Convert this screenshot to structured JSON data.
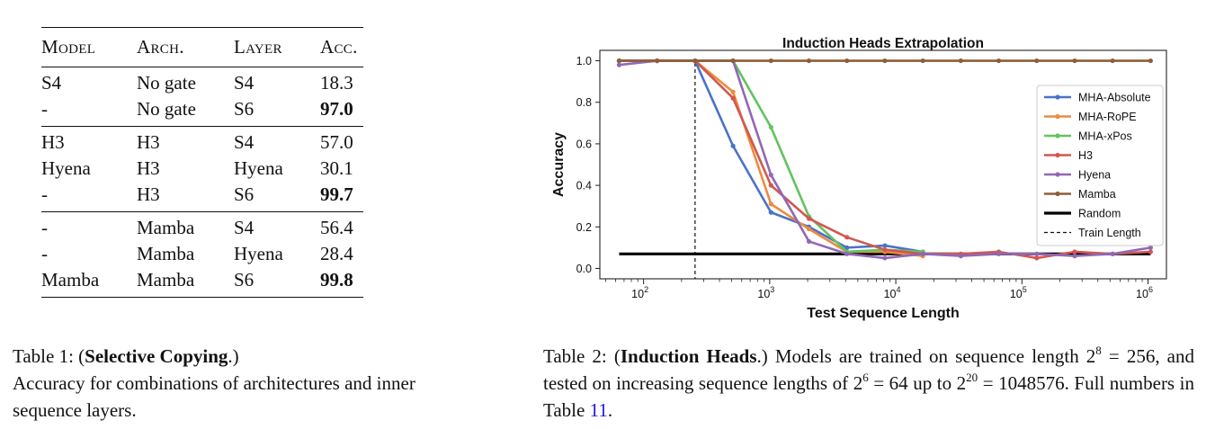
{
  "table1": {
    "headers": [
      "Model",
      "Arch.",
      "Layer",
      "Acc."
    ],
    "groups": [
      [
        {
          "model": "S4",
          "arch": "No gate",
          "layer": "S4",
          "acc": "18.3",
          "bold": false
        },
        {
          "model": "-",
          "arch": "No gate",
          "layer": "S6",
          "acc": "97.0",
          "bold": true
        }
      ],
      [
        {
          "model": "H3",
          "arch": "H3",
          "layer": "S4",
          "acc": "57.0",
          "bold": false
        },
        {
          "model": "Hyena",
          "arch": "H3",
          "layer": "Hyena",
          "acc": "30.1",
          "bold": false
        },
        {
          "model": "-",
          "arch": "H3",
          "layer": "S6",
          "acc": "99.7",
          "bold": true
        }
      ],
      [
        {
          "model": "-",
          "arch": "Mamba",
          "layer": "S4",
          "acc": "56.4",
          "bold": false
        },
        {
          "model": "-",
          "arch": "Mamba",
          "layer": "Hyena",
          "acc": "28.4",
          "bold": false
        },
        {
          "model": "Mamba",
          "arch": "Mamba",
          "layer": "S6",
          "acc": "99.8",
          "bold": true
        }
      ]
    ]
  },
  "caption1": {
    "prefix": "Table 1: (",
    "bold": "Selective Copying",
    "suffix": ".)",
    "body": "Accuracy for combinations of architectures and inner sequence layers."
  },
  "caption2": {
    "prefix": "Table 2: (",
    "bold": "Induction Heads",
    "part1": ".) Models are trained on sequence length 2",
    "exp1": "8",
    "part2": " = 256, and tested on increasing sequence lengths of 2",
    "exp2": "6",
    "part3": " = 64 up to 2",
    "exp3": "20",
    "part4": " = 1048576. Full numbers in Table ",
    "link": "11",
    "part5": "."
  },
  "chart_data": {
    "type": "line",
    "title": "Induction Heads Extrapolation",
    "xlabel": "Test Sequence Length",
    "ylabel": "Accuracy",
    "xscale": "log",
    "xlim": [
      45,
      1400000
    ],
    "ylim": [
      -0.05,
      1.05
    ],
    "x_ticks": [
      {
        "value": 100,
        "base": "10",
        "exp": "2"
      },
      {
        "value": 1000,
        "base": "10",
        "exp": "3"
      },
      {
        "value": 10000,
        "base": "10",
        "exp": "4"
      },
      {
        "value": 100000,
        "base": "10",
        "exp": "5"
      },
      {
        "value": 1000000,
        "base": "10",
        "exp": "6"
      }
    ],
    "y_ticks": [
      "0.0",
      "0.2",
      "0.4",
      "0.6",
      "0.8",
      "1.0"
    ],
    "y_tick_values": [
      0,
      0.2,
      0.4,
      0.6,
      0.8,
      1.0
    ],
    "x": [
      64,
      128,
      256,
      512,
      1024,
      2048,
      4096,
      8192,
      16384,
      32768,
      65536,
      131072,
      262144,
      524288,
      1048576
    ],
    "series": [
      {
        "name": "MHA-Absolute",
        "color": "#4a72c9",
        "markers": true,
        "values": [
          1.0,
          1.0,
          1.0,
          0.59,
          0.27,
          0.2,
          0.1,
          0.11,
          0.08,
          null,
          null,
          null,
          null,
          null,
          null
        ]
      },
      {
        "name": "MHA-RoPE",
        "color": "#ee8a3e",
        "markers": true,
        "values": [
          1.0,
          1.0,
          1.0,
          0.85,
          0.31,
          0.19,
          0.08,
          0.08,
          0.06,
          null,
          null,
          null,
          null,
          null,
          null
        ]
      },
      {
        "name": "MHA-xPos",
        "color": "#63c35f",
        "markers": true,
        "values": [
          1.0,
          1.0,
          1.0,
          1.0,
          0.68,
          0.25,
          0.08,
          0.09,
          0.08,
          null,
          null,
          null,
          null,
          null,
          null
        ]
      },
      {
        "name": "H3",
        "color": "#d2574f",
        "markers": true,
        "values": [
          1.0,
          1.0,
          1.0,
          0.82,
          0.4,
          0.24,
          0.15,
          0.09,
          0.07,
          0.07,
          0.08,
          0.05,
          0.08,
          0.07,
          0.08
        ]
      },
      {
        "name": "Hyena",
        "color": "#9068b6",
        "markers": true,
        "values": [
          0.98,
          1.0,
          1.0,
          1.0,
          0.45,
          0.13,
          0.07,
          0.05,
          0.07,
          0.06,
          0.07,
          0.07,
          0.06,
          0.07,
          0.1
        ]
      },
      {
        "name": "Mamba",
        "color": "#8e5e3a",
        "markers": true,
        "values": [
          1.0,
          1.0,
          1.0,
          1.0,
          1.0,
          1.0,
          1.0,
          1.0,
          1.0,
          1.0,
          1.0,
          1.0,
          1.0,
          1.0,
          1.0
        ]
      },
      {
        "name": "Random",
        "color": "#000000",
        "markers": false,
        "flat": 0.07
      }
    ],
    "train_length": {
      "name": "Train Length",
      "x": 256
    },
    "grid": false,
    "legend": "right"
  }
}
